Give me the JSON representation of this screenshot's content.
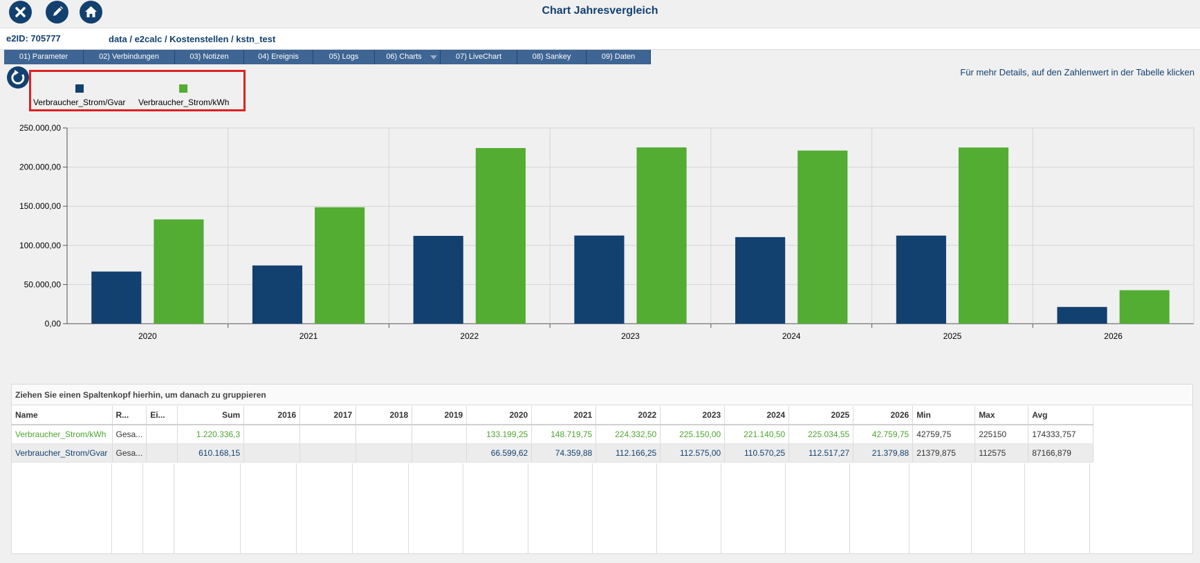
{
  "header": {
    "title": "Chart Jahresvergleich",
    "close_icon": "close-icon",
    "edit_icon": "pencil-icon",
    "home_icon": "home-icon"
  },
  "idrow": {
    "e2id": "e2ID: 705777",
    "path": "data / e2calc / Kostenstellen / kstn_test"
  },
  "tabs": [
    {
      "label": "01) Parameter"
    },
    {
      "label": "02) Verbindungen"
    },
    {
      "label": "03) Notizen"
    },
    {
      "label": "04) Ereignis"
    },
    {
      "label": "05) Logs"
    },
    {
      "label": "06) Charts"
    },
    {
      "label": "07) LiveChart"
    },
    {
      "label": "08) Sankey"
    },
    {
      "label": "09) Daten"
    }
  ],
  "hint": "Für mehr Details, auf den Zahlenwert in der Tabelle  klicken",
  "legend": [
    {
      "label": "Verbraucher_Strom/Gvar",
      "color": "#12406f"
    },
    {
      "label": "Verbraucher_Strom/kWh",
      "color": "#52ad32"
    }
  ],
  "chart_data": {
    "type": "bar",
    "categories": [
      "2020",
      "2021",
      "2022",
      "2023",
      "2024",
      "2025",
      "2026"
    ],
    "series": [
      {
        "name": "Verbraucher_Strom/Gvar",
        "color": "#12406f",
        "values": [
          66599.62,
          74359.88,
          112166.25,
          112575.0,
          110570.25,
          112517.27,
          21379.88
        ]
      },
      {
        "name": "Verbraucher_Strom/kWh",
        "color": "#52ad32",
        "values": [
          133199.25,
          148719.75,
          224332.5,
          225150.0,
          221140.5,
          225034.55,
          42759.75
        ]
      }
    ],
    "ylim": [
      0,
      250000
    ],
    "yticks": [
      "0,00",
      "50.000,00",
      "100.000,00",
      "150.000,00",
      "200.000,00",
      "250.000,00"
    ],
    "grid": true
  },
  "table": {
    "group_hint": "Ziehen Sie einen Spaltenkopf hierhin, um danach zu gruppieren",
    "columns": [
      "Name",
      "R...",
      "Ei...",
      "Sum",
      "2016",
      "2017",
      "2018",
      "2019",
      "2020",
      "2021",
      "2022",
      "2023",
      "2024",
      "2025",
      "2026",
      "Min",
      "Max",
      "Avg"
    ],
    "rows": [
      {
        "cells": [
          "Verbraucher_Strom/kWh",
          "Gesa...",
          "",
          "1.220.336,3",
          "",
          "",
          "",
          "",
          "133.199,25",
          "148.719,75",
          "224.332,50",
          "225.150,00",
          "221.140,50",
          "225.034,55",
          "42.759,75",
          "42759,75",
          "225150",
          "174333,757"
        ]
      },
      {
        "cells": [
          "Verbraucher_Strom/Gvar",
          "Gesa...",
          "",
          "610.168,15",
          "",
          "",
          "",
          "",
          "66.599,62",
          "74.359,88",
          "112.166,25",
          "112.575,00",
          "110.570,25",
          "112.517,27",
          "21.379,88",
          "21379,875",
          "112575",
          "87166,879"
        ]
      }
    ]
  }
}
